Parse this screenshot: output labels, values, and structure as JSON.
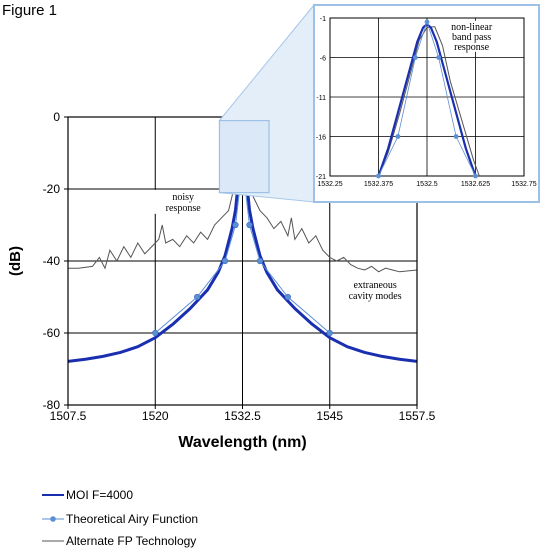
{
  "figure_label": "Figure 1",
  "chart_data": [
    {
      "type": "line",
      "xlabel": "Wavelength (nm)",
      "ylabel": "(dB)",
      "xlim": [
        1507.5,
        1557.5
      ],
      "ylim": [
        -80,
        0
      ],
      "x_ticks": [
        "1507.5",
        "1520",
        "1532.5",
        "1545",
        "1557.5"
      ],
      "y_ticks": [
        "0",
        "-20",
        "-40",
        "-60",
        "-80"
      ],
      "grid": true,
      "legend_position": "bottom-left",
      "series": [
        {
          "name": "MOI F=4000",
          "color": "#1a2fb0",
          "style": "thick-line",
          "points": [
            [
              1507.5,
              -67.9
            ],
            [
              1510,
              -67.3
            ],
            [
              1512.5,
              -66.5
            ],
            [
              1515,
              -65.4
            ],
            [
              1517.5,
              -63.8
            ],
            [
              1520,
              -61.3
            ],
            [
              1522.5,
              -57.6
            ],
            [
              1525,
              -53.2
            ],
            [
              1527.5,
              -48.0
            ],
            [
              1529,
              -43.2
            ],
            [
              1530,
              -38.5
            ],
            [
              1531,
              -31.0
            ],
            [
              1531.5,
              -25.8
            ],
            [
              1532,
              -16.0
            ],
            [
              1532.2,
              -9.0
            ],
            [
              1532.4,
              -3.0
            ],
            [
              1532.5,
              -1.0
            ],
            [
              1532.6,
              -3.0
            ],
            [
              1532.8,
              -9.0
            ],
            [
              1533,
              -16.0
            ],
            [
              1533.5,
              -25.8
            ],
            [
              1534,
              -31.0
            ],
            [
              1535,
              -38.5
            ],
            [
              1536,
              -43.2
            ],
            [
              1537.5,
              -48.0
            ],
            [
              1540,
              -53.2
            ],
            [
              1542.5,
              -57.6
            ],
            [
              1545,
              -61.3
            ],
            [
              1547.5,
              -63.8
            ],
            [
              1550,
              -65.4
            ],
            [
              1552.5,
              -66.5
            ],
            [
              1555,
              -67.3
            ],
            [
              1557.5,
              -67.9
            ]
          ]
        },
        {
          "name": "Theoretical Airy Function",
          "color": "#5b8fd6",
          "style": "line-with-markers",
          "points": [
            [
              1520,
              -60
            ],
            [
              1526,
              -50
            ],
            [
              1530,
              -40
            ],
            [
              1531.5,
              -30
            ],
            [
              1532.1,
              -20
            ],
            [
              1532.3,
              -10
            ],
            [
              1532.5,
              -1
            ],
            [
              1532.7,
              -10
            ],
            [
              1532.9,
              -20
            ],
            [
              1533.5,
              -30
            ],
            [
              1535,
              -40
            ],
            [
              1539,
              -50
            ],
            [
              1545,
              -60
            ]
          ]
        },
        {
          "name": "Alternate FP Technology",
          "color": "#555555",
          "style": "thin-line",
          "points": [
            [
              1507.5,
              -42
            ],
            [
              1509,
              -42
            ],
            [
              1511,
              -41.5
            ],
            [
              1512,
              -39
            ],
            [
              1512.8,
              -42
            ],
            [
              1513.5,
              -37
            ],
            [
              1514.5,
              -40
            ],
            [
              1515.5,
              -36
            ],
            [
              1516.5,
              -39
            ],
            [
              1517.5,
              -35
            ],
            [
              1518.5,
              -38
            ],
            [
              1519.5,
              -36
            ],
            [
              1520.5,
              -34
            ],
            [
              1521,
              -30
            ],
            [
              1521.5,
              -35
            ],
            [
              1522.5,
              -34
            ],
            [
              1523.5,
              -36
            ],
            [
              1524.5,
              -33
            ],
            [
              1525.5,
              -35
            ],
            [
              1526.5,
              -32
            ],
            [
              1527.5,
              -34
            ],
            [
              1528.5,
              -30
            ],
            [
              1529.5,
              -28
            ],
            [
              1530.5,
              -26
            ],
            [
              1531,
              -22
            ],
            [
              1531.5,
              -18
            ],
            [
              1532,
              -10
            ],
            [
              1532.5,
              -2
            ],
            [
              1533,
              -10
            ],
            [
              1533.5,
              -18
            ],
            [
              1534,
              -22
            ],
            [
              1535,
              -26
            ],
            [
              1536,
              -28
            ],
            [
              1537,
              -31
            ],
            [
              1538,
              -29
            ],
            [
              1539,
              -33
            ],
            [
              1539.5,
              -28
            ],
            [
              1540,
              -34
            ],
            [
              1541,
              -31
            ],
            [
              1542,
              -35
            ],
            [
              1543,
              -33
            ],
            [
              1544,
              -37
            ],
            [
              1545,
              -39
            ],
            [
              1546,
              -40
            ],
            [
              1547,
              -39
            ],
            [
              1548,
              -41
            ],
            [
              1549,
              -42
            ],
            [
              1550,
              -42.5
            ],
            [
              1551,
              -41.5
            ],
            [
              1552,
              -43
            ],
            [
              1553,
              -42
            ],
            [
              1554,
              -42.5
            ],
            [
              1555,
              -43
            ],
            [
              1557.5,
              -42.5
            ]
          ]
        }
      ],
      "annotations": [
        {
          "text": [
            "noisy",
            "response"
          ],
          "x": 1524,
          "y": -23
        },
        {
          "text": [
            "extraneous",
            "cavity modes"
          ],
          "x": 1551.5,
          "y": -47.5
        }
      ]
    },
    {
      "type": "line",
      "inset": true,
      "xlim": [
        1532.25,
        1532.75
      ],
      "ylim": [
        -21,
        -1
      ],
      "x_ticks": [
        "1532.25",
        "1532.375",
        "1532.5",
        "1532.625",
        "1532.75"
      ],
      "y_ticks": [
        "-1",
        "-6",
        "-11",
        "-16",
        "-21"
      ],
      "grid": true,
      "series": [
        {
          "name": "MOI F=4000",
          "color": "#1a2fb0",
          "points": [
            [
              1532.375,
              -21
            ],
            [
              1532.4,
              -17.5
            ],
            [
              1532.425,
              -13
            ],
            [
              1532.45,
              -8.5
            ],
            [
              1532.475,
              -4
            ],
            [
              1532.49,
              -2.2
            ],
            [
              1532.5,
              -1.8
            ],
            [
              1532.51,
              -2.2
            ],
            [
              1532.525,
              -4
            ],
            [
              1532.55,
              -8.5
            ],
            [
              1532.575,
              -13
            ],
            [
              1532.6,
              -17.5
            ],
            [
              1532.625,
              -21
            ]
          ]
        },
        {
          "name": "Theoretical Airy Function",
          "color": "#5b8fd6",
          "points": [
            [
              1532.375,
              -21
            ],
            [
              1532.425,
              -16
            ],
            [
              1532.47,
              -6
            ],
            [
              1532.5,
              -1.5
            ],
            [
              1532.53,
              -6
            ],
            [
              1532.575,
              -16
            ],
            [
              1532.625,
              -21
            ]
          ]
        },
        {
          "name": "Alternate FP Technology",
          "color": "#555555",
          "points": [
            [
              1532.375,
              -21
            ],
            [
              1532.4,
              -18
            ],
            [
              1532.43,
              -13
            ],
            [
              1532.46,
              -7.5
            ],
            [
              1532.48,
              -3.8
            ],
            [
              1532.5,
              -2.2
            ],
            [
              1532.52,
              -2.1
            ],
            [
              1532.54,
              -4.5
            ],
            [
              1532.56,
              -9
            ],
            [
              1532.59,
              -14
            ],
            [
              1532.62,
              -19
            ],
            [
              1532.635,
              -21
            ]
          ]
        }
      ],
      "annotations": [
        {
          "text": [
            "non-linear",
            "band pass",
            "response"
          ],
          "x": 1532.615,
          "y": -2.5
        }
      ]
    }
  ]
}
